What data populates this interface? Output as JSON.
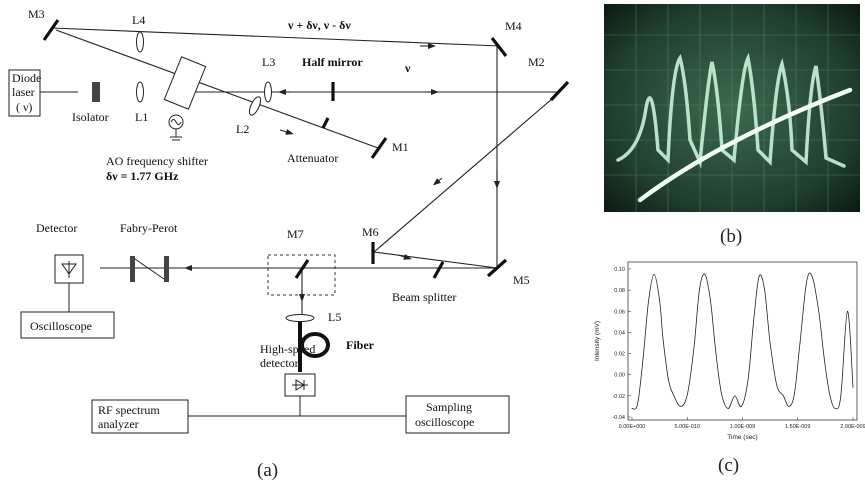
{
  "diagram": {
    "mirrors": {
      "m1": "M1",
      "m2": "M2",
      "m3": "M3",
      "m4": "M4",
      "m5": "M5",
      "m6": "M6",
      "m7": "M7"
    },
    "lenses": {
      "l1": "L1",
      "l2": "L2",
      "l3": "L3",
      "l4": "L4",
      "l5": "L5"
    },
    "beam_top": "ν + δν, ν - δν",
    "beam_mid": "ν",
    "half_mirror": "Half mirror",
    "laser_line1": "Diode",
    "laser_line2": "laser",
    "laser_line3": "( ν)",
    "isolator": "Isolator",
    "attenuator": "Attenuator",
    "ao_line1": "AO frequency shifter",
    "ao_line2": "δν = 1.77 GHz",
    "detector": "Detector",
    "fabry_perot": "Fabry-Perot",
    "oscilloscope": "Oscilloscope",
    "beam_splitter": "Beam splitter",
    "fiber": "Fiber",
    "hs_line1": "High-speed",
    "hs_line2": "detector",
    "rf_line1": "RF spectrum",
    "rf_line2": "analyzer",
    "sampling_line1": "Sampling",
    "sampling_line2": "oscilloscope"
  },
  "captions": {
    "a": "(a)",
    "b": "(b)",
    "c": "(c)"
  },
  "chart_data": {
    "type": "line",
    "xlabel": "Time (sec)",
    "ylabel": "Intensity (mV)",
    "xlim": [
      0,
      2e-09
    ],
    "ylim": [
      -0.04,
      0.1
    ],
    "x_ticks": [
      "0.00E+000",
      "5.00E-010",
      "1.00E-009",
      "1.50E-009",
      "2.00E-009"
    ],
    "y_ticks": [
      "0.10",
      "0.08",
      "0.06",
      "0.04",
      "0.02",
      "0.00",
      "-0.02",
      "-0.04"
    ],
    "series": [
      {
        "x": [
          0.0,
          5e-11,
          1e-10,
          1.5e-10,
          2e-10,
          2.5e-10,
          2.8e-10,
          3.3e-10,
          3.8e-10,
          4.4e-10,
          5e-10,
          5.6e-10,
          6.1e-10,
          6.6e-10,
          7.1e-10,
          7.6e-10,
          8.1e-10,
          8.7e-10,
          9.3e-10,
          9.9e-10,
          1.05e-09,
          1.1e-09,
          1.15e-09,
          1.2e-09,
          1.25e-09,
          1.31e-09,
          1.37e-09,
          1.42e-09,
          1.47e-09,
          1.52e-09,
          1.58e-09,
          1.63e-09,
          1.69e-09,
          1.74e-09,
          1.79e-09,
          1.84e-09,
          1.89e-09,
          1.95e-09,
          2e-09
        ],
        "values": [
          -0.032,
          -0.028,
          0.015,
          0.07,
          0.095,
          0.07,
          0.035,
          -0.005,
          -0.02,
          -0.03,
          -0.019,
          0.025,
          0.08,
          0.095,
          0.07,
          0.02,
          -0.018,
          -0.032,
          -0.02,
          -0.03,
          -0.005,
          0.05,
          0.093,
          0.08,
          0.03,
          -0.01,
          -0.02,
          -0.03,
          -0.018,
          0.03,
          0.088,
          0.093,
          0.06,
          0.015,
          -0.019,
          -0.032,
          -0.02,
          0.06,
          -0.012
        ]
      }
    ]
  }
}
